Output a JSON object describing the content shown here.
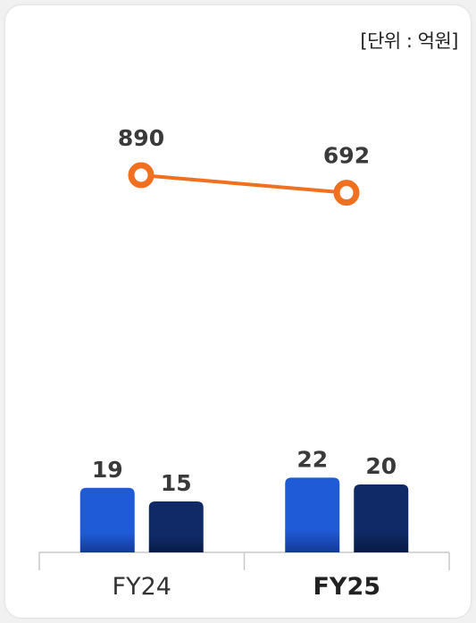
{
  "unit_label": "[단위 : 억원]",
  "chart_data": {
    "type": "bar",
    "categories": [
      "FY24",
      "FY25"
    ],
    "highlight_category": "FY25",
    "series": [
      {
        "values": [
          19,
          22
        ],
        "color": "#1f5bd6",
        "kind": "bar"
      },
      {
        "values": [
          15,
          20
        ],
        "color": "#0f2a66",
        "kind": "bar"
      },
      {
        "values": [
          890,
          692
        ],
        "color": "#f07020",
        "kind": "line"
      }
    ],
    "legend": "none",
    "grid": false
  }
}
